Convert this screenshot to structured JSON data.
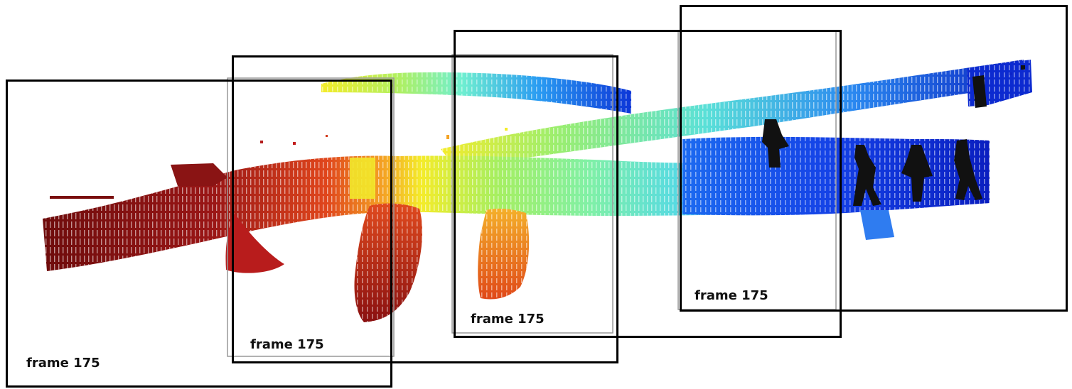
{
  "frames": [
    {
      "label": "frame 175"
    },
    {
      "label": "frame 175"
    },
    {
      "label": "frame 175"
    },
    {
      "label": "frame 175"
    }
  ],
  "colormap": [
    "#7a0d0d",
    "#b01a1a",
    "#e23a1e",
    "#f08a22",
    "#f3d623",
    "#a8f05a",
    "#58e8b0",
    "#40c8f0",
    "#1e78f0",
    "#0a2ee0"
  ],
  "person_color": "#111111"
}
